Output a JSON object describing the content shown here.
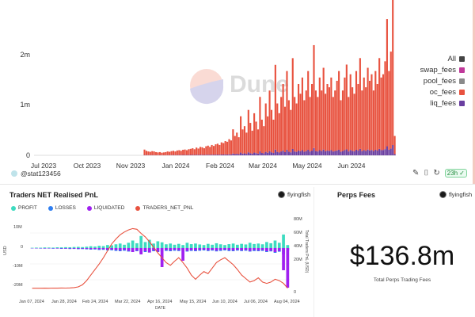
{
  "top_chart": {
    "watermark": "Dune",
    "y_ticks": [
      "2m",
      "1m",
      "0"
    ],
    "x_ticks": [
      "Jul 2023",
      "Oct 2023",
      "Nov 2023",
      "Jan 2024",
      "Feb 2024",
      "Mar 2024",
      "May 2024",
      "Jun 2024"
    ],
    "legend": [
      {
        "label": "All",
        "color": "#444444"
      },
      {
        "label": "swap_fees",
        "color": "#c0399a"
      },
      {
        "label": "pool_fees",
        "color": "#8a8a8a"
      },
      {
        "label": "oc_fees",
        "color": "#e8523f"
      },
      {
        "label": "liq_fees",
        "color": "#6a3fa0"
      }
    ],
    "footer": {
      "user": "@stat123456",
      "refresh": "23h"
    }
  },
  "chart_data": [
    {
      "type": "bar",
      "title": "",
      "xlabel": "",
      "ylabel": "",
      "ylim": [
        0,
        2500000
      ],
      "stacked": true,
      "x_range": [
        "2023-07-01",
        "2024-08-10"
      ],
      "series_start": "2023-11-01",
      "series": [
        {
          "name": "oc_fees",
          "color": "#e8523f",
          "values": [
            90000,
            70000,
            60000,
            55000,
            65000,
            60000,
            50000,
            45000,
            50000,
            40000,
            45000,
            50000,
            60000,
            55000,
            65000,
            70000,
            60000,
            75000,
            80000,
            70000,
            85000,
            90000,
            80000,
            95000,
            100000,
            110000,
            95000,
            120000,
            105000,
            130000,
            125000,
            110000,
            140000,
            150000,
            130000,
            160000,
            145000,
            170000,
            180000,
            160000,
            200000,
            190000,
            220000,
            210000,
            250000,
            230000,
            400000,
            300000,
            350000,
            280000,
            600000,
            400000,
            450000,
            350000,
            700000,
            500000,
            380000,
            650000,
            520000,
            400000,
            900000,
            550000,
            450000,
            800000,
            600000,
            1000000,
            700000,
            550000,
            1400000,
            800000,
            650000,
            900000,
            1100000,
            750000,
            1300000,
            850000,
            700000,
            1500000,
            900000,
            800000,
            1100000,
            950000,
            1200000,
            850000,
            1000000,
            1300000,
            900000,
            1100000,
            1700000,
            1000000,
            900000,
            1200000,
            1000000,
            1350000,
            950000,
            1100000,
            1050000,
            1200000,
            900000,
            1000000,
            1150000,
            1300000,
            850000,
            1000000,
            1200000,
            1400000,
            900000,
            1250000,
            1050000,
            950000,
            1300000,
            1100000,
            1500000,
            1000000,
            1200000,
            1050000,
            1350000,
            1150000,
            1250000,
            1000000,
            1300000,
            1100000,
            1500000,
            1200000,
            1250000,
            1450000,
            2100000,
            1300000,
            1600000,
            2400000,
            300000
          ]
        },
        {
          "name": "liq_fees",
          "color": "#6a3fa0",
          "values": [
            5000,
            4000,
            4000,
            3000,
            4000,
            4000,
            3000,
            3000,
            3000,
            3000,
            3000,
            3000,
            4000,
            3000,
            4000,
            5000,
            4000,
            5000,
            5000,
            5000,
            6000,
            6000,
            5000,
            6000,
            7000,
            7000,
            6000,
            8000,
            7000,
            9000,
            8000,
            7000,
            9000,
            10000,
            9000,
            11000,
            10000,
            12000,
            12000,
            11000,
            14000,
            13000,
            15000,
            14000,
            17000,
            16000,
            30000,
            20000,
            25000,
            19000,
            45000,
            28000,
            32000,
            25000,
            50000,
            36000,
            27000,
            45000,
            37000,
            28000,
            65000,
            39000,
            32000,
            57000,
            43000,
            70000,
            50000,
            39000,
            95000,
            57000,
            46000,
            64000,
            78000,
            53000,
            92000,
            60000,
            50000,
            105000,
            64000,
            57000,
            78000,
            67000,
            85000,
            60000,
            71000,
            92000,
            64000,
            78000,
            120000,
            71000,
            64000,
            85000,
            71000,
            96000,
            67000,
            78000,
            74000,
            85000,
            64000,
            71000,
            81000,
            92000,
            60000,
            71000,
            85000,
            99000,
            64000,
            89000,
            74000,
            67000,
            92000,
            78000,
            106000,
            71000,
            85000,
            74000,
            96000,
            81000,
            89000,
            71000,
            92000,
            78000,
            106000,
            85000,
            89000,
            103000,
            150000,
            92000,
            113000,
            170000,
            20000
          ]
        }
      ]
    },
    {
      "type": "bar",
      "title": "Traders NET Realised PnL",
      "xlabel": "DATE",
      "ylabel": "USD",
      "y2label": "Total Traders PnL (USD)",
      "ylim": [
        -30000000,
        20000000
      ],
      "y_ticks": [
        "10M",
        "0",
        "-10M",
        "-20M"
      ],
      "y2lim": [
        -5000000,
        100000000
      ],
      "y2_ticks": [
        "80M",
        "60M",
        "40M",
        "20M",
        "0"
      ],
      "x_ticks": [
        "Jan 07, 2024",
        "Jan 28, 2024",
        "Feb 24, 2024",
        "Mar 22, 2024",
        "Apr 16, 2024",
        "May 15, 2024",
        "Jun 10, 2024",
        "Jul 06, 2024",
        "Aug 04, 2024"
      ],
      "legend": [
        {
          "label": "PROFIT",
          "color": "#3ddbc0"
        },
        {
          "label": "LOSSES",
          "color": "#2f7ef0"
        },
        {
          "label": "LIQUIDATED",
          "color": "#a020f0"
        },
        {
          "label": "TRADERS_NET_PNL",
          "color": "#e8523f"
        }
      ],
      "series": [
        {
          "name": "PROFIT",
          "color": "#3ddbc0",
          "values": [
            200000,
            300000,
            250000,
            400000,
            350000,
            300000,
            500000,
            450000,
            600000,
            550000,
            700000,
            800000,
            650000,
            900000,
            1200000,
            1000000,
            1500000,
            1300000,
            2000000,
            1800000,
            2500000,
            3000000,
            2200000,
            3500000,
            5000000,
            3200000,
            8000000,
            4000000,
            5500000,
            3000000,
            4500000,
            3800000,
            2500000,
            3000000,
            2200000,
            2800000,
            2000000,
            3500000,
            2600000,
            3000000,
            2400000,
            2000000,
            2800000,
            2200000,
            3200000,
            2500000,
            2000000,
            2600000,
            3000000,
            2200000,
            2800000,
            2400000,
            3500000,
            2700000,
            3000000,
            2500000,
            4000000,
            3200000,
            5000000,
            3500000,
            9000000,
            2000000
          ]
        },
        {
          "name": "LOSSES",
          "color": "#2f7ef0",
          "values": [
            -200000,
            -250000,
            -300000,
            -350000,
            -300000,
            -400000,
            -350000,
            -500000,
            -450000,
            -600000,
            -550000,
            -700000,
            -650000,
            -800000,
            -1000000,
            -900000,
            -1200000,
            -1100000,
            -1500000,
            -1400000,
            -1800000,
            -2000000,
            -1700000,
            -2200000,
            -2500000,
            -2000000,
            -3000000,
            -2500000,
            -2800000,
            -2000000,
            -2500000,
            -2200000,
            -1800000,
            -2000000,
            -1700000,
            -1900000,
            -1500000,
            -2200000,
            -1800000,
            -2000000,
            -1700000,
            -1500000,
            -1900000,
            -1600000,
            -2100000,
            -1800000,
            -1500000,
            -1900000,
            -2000000,
            -1600000,
            -1900000,
            -1700000,
            -2200000,
            -1900000,
            -2000000,
            -1800000,
            -2500000,
            -2100000,
            -3000000,
            -2300000,
            -4000000,
            -1500000
          ]
        },
        {
          "name": "LIQUIDATED",
          "color": "#a020f0",
          "values": [
            -100000,
            -150000,
            -120000,
            -200000,
            -180000,
            -150000,
            -250000,
            -220000,
            -300000,
            -280000,
            -350000,
            -400000,
            -320000,
            -450000,
            -600000,
            -500000,
            -750000,
            -650000,
            -1000000,
            -900000,
            -1200000,
            -1500000,
            -1100000,
            -1800000,
            -2500000,
            -1600000,
            -4000000,
            -2000000,
            -2800000,
            -1500000,
            -2200000,
            -12000000,
            -1200000,
            -1500000,
            -1100000,
            -1400000,
            -8000000,
            -1800000,
            -1300000,
            -1500000,
            -1200000,
            -1000000,
            -1400000,
            -1100000,
            -1600000,
            -1200000,
            -1000000,
            -1300000,
            -1500000,
            -1100000,
            -1400000,
            -1200000,
            -1800000,
            -1300000,
            -1500000,
            -1200000,
            -2000000,
            -1600000,
            -2500000,
            -1800000,
            -14000000,
            -25000000
          ]
        },
        {
          "name": "TRADERS_NET_PNL",
          "color": "#e8523f",
          "axis": "y2",
          "values": [
            1000000,
            1100000,
            1000000,
            1200000,
            1100000,
            1300000,
            1200000,
            1400000,
            1300000,
            1500000,
            2000000,
            3000000,
            6000000,
            12000000,
            20000000,
            28000000,
            36000000,
            45000000,
            55000000,
            65000000,
            72000000,
            78000000,
            82000000,
            85000000,
            87000000,
            86000000,
            80000000,
            75000000,
            68000000,
            60000000,
            52000000,
            45000000,
            38000000,
            34000000,
            40000000,
            45000000,
            38000000,
            30000000,
            20000000,
            14000000,
            20000000,
            25000000,
            22000000,
            30000000,
            38000000,
            42000000,
            45000000,
            40000000,
            35000000,
            28000000,
            20000000,
            15000000,
            10000000,
            12000000,
            16000000,
            10000000,
            8000000,
            10000000,
            14000000,
            12000000,
            8000000,
            1000000
          ]
        }
      ]
    }
  ],
  "pnl_panel": {
    "title": "Traders NET Realised PnL",
    "author": "flyingfish"
  },
  "fees_panel": {
    "title": "Perps Fees",
    "author": "flyingfish",
    "value": "$136.8m",
    "caption": "Total Perps Trading Fees"
  }
}
